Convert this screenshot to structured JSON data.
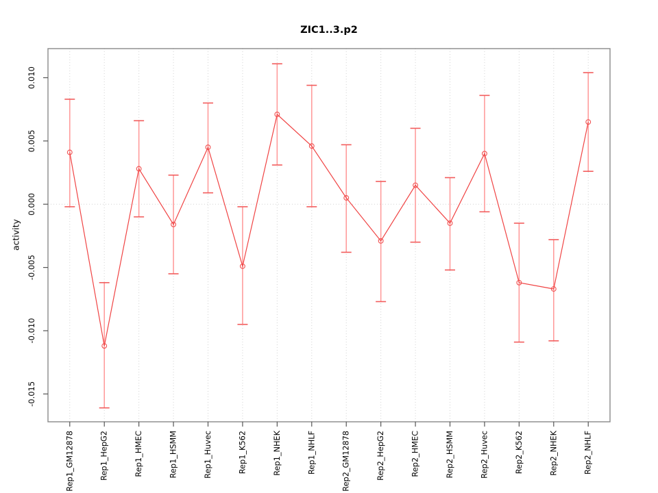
{
  "chart_data": {
    "type": "line",
    "title": "ZIC1..3.p2",
    "ylabel": "activity",
    "xlabel": "",
    "legend_position": "none",
    "point_style": "open-circle",
    "error_bars": true,
    "grid": "dotted vertical line at each category and dotted horizontal line at zero",
    "categories": [
      "Rep1_GM12878",
      "Rep1_HepG2",
      "Rep1_HMEC",
      "Rep1_HSMM",
      "Rep1_Huvec",
      "Rep1_K562",
      "Rep1_NHEK",
      "Rep1_NHLF",
      "Rep2_GM12878",
      "Rep2_HepG2",
      "Rep2_HMEC",
      "Rep2_HSMM",
      "Rep2_Huvec",
      "Rep2_K562",
      "Rep2_NHEK",
      "Rep2_NHLF"
    ],
    "series": [
      {
        "name": "activity",
        "values": [
          0.0041,
          -0.0112,
          0.0028,
          -0.0016,
          0.0045,
          -0.0049,
          0.0071,
          0.0046,
          0.0005,
          -0.0029,
          0.0015,
          -0.0015,
          0.004,
          -0.0062,
          -0.0067,
          0.0065
        ],
        "error_high": [
          0.0083,
          -0.0062,
          0.0066,
          0.0023,
          0.008,
          -0.0002,
          0.0111,
          0.0094,
          0.0047,
          0.0018,
          0.006,
          0.0021,
          0.0086,
          -0.0015,
          -0.0028,
          0.0104
        ],
        "error_low": [
          -0.0002,
          -0.0161,
          -0.001,
          -0.0055,
          0.0009,
          -0.0095,
          0.0031,
          -0.0002,
          -0.0038,
          -0.0077,
          -0.003,
          -0.0052,
          -0.0006,
          -0.0109,
          -0.0108,
          0.0026
        ]
      }
    ],
    "yticks": [
      0.01,
      0.005,
      0.0,
      -0.005,
      -0.01,
      -0.015
    ],
    "ytick_labels": [
      "0.010",
      "0.005",
      "0.000",
      "-0.005",
      "-0.010",
      "-0.015"
    ],
    "ylim": [
      -0.0172,
      0.0123
    ],
    "colors": {
      "line": "#f04343",
      "whisker": "#ff9c9c",
      "cap": "#f25c5c",
      "point": "#f05050",
      "grid": "#d2d2d2",
      "box": "#888888",
      "tick": "#555555",
      "text": "#000000"
    }
  }
}
